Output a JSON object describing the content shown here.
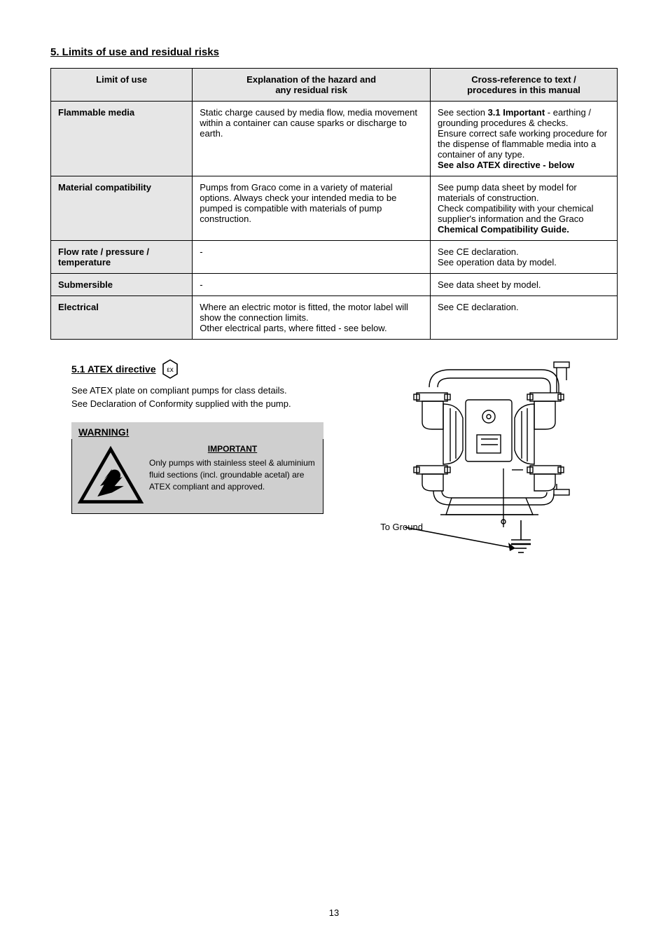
{
  "section_title": "5. Limits of use and residual risks",
  "table": {
    "headers": [
      "Limit of use",
      "Explanation of the hazard and\nany residual risk",
      "Cross-reference to text /\nprocedures in this manual"
    ],
    "rows": [
      {
        "label": "Flammable media",
        "explanation": "Static charge caused by media flow, media movement within a container can cause sparks or discharge to earth.",
        "xref_segments": [
          "See section ",
          "3.1 Important",
          " - earthing / grounding procedures & checks.\nEnsure correct safe working procedure for the dispense of flammable media into a container of any type.",
          "\nSee also ATEX directive - below"
        ],
        "xref_bold_idx": [
          1,
          3
        ]
      },
      {
        "label": "Material compatibility",
        "explanation": "Pumps from Graco come in a variety of material options. Always check your intended media to be pumped is compatible with materials of pump construction.",
        "xref_segments": [
          "See pump data sheet by model for materials of construction.\nCheck compatibility with your chemical supplier's information and the Graco ",
          "Chemical Compatibility Guide."
        ],
        "xref_bold_idx": [
          1
        ]
      },
      {
        "label": "Flow rate / pressure / temperature",
        "explanation": "-",
        "xref_segments": [
          "See CE declaration.\nSee operation data by model."
        ],
        "xref_bold_idx": []
      },
      {
        "label": "Submersible",
        "explanation": "-",
        "xref_segments": [
          "See data sheet by model."
        ],
        "xref_bold_idx": []
      },
      {
        "label": "Electrical",
        "explanation": "Where an electric motor is fitted, the motor label will show the connection limits.\nOther electrical parts, where fitted - see below.",
        "xref_segments": [
          "See CE declaration."
        ],
        "xref_bold_idx": []
      }
    ]
  },
  "atex": {
    "title": "5.1 ATEX directive",
    "note": "See ATEX plate on             compliant pumps for class details.\nSee Declaration of Conformity supplied with the pump.",
    "warning_title": "WARNING!",
    "warning_sub": "IMPORTANT",
    "warning_body": "Only pumps with stainless steel & aluminium fluid sections (incl. groundable acetal) are ATEX compliant and approved."
  },
  "ground_text": "To Ground",
  "page_number": "13"
}
